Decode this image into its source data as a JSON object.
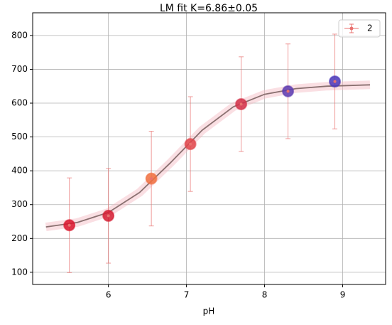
{
  "chart_data": {
    "type": "scatter",
    "title": "LM fit K=6.86±0.05",
    "x_label": "pH",
    "xlim": [
      5.03,
      9.55
    ],
    "ylim": [
      64,
      867
    ],
    "xticks": [
      6,
      7,
      8,
      9
    ],
    "yticks": [
      100,
      200,
      300,
      400,
      500,
      600,
      700,
      800
    ],
    "grid": true,
    "legend": "upper right",
    "series": [
      {
        "name": "2",
        "color": "#e8716f",
        "x": [
          5.5,
          6.0,
          6.55,
          7.05,
          7.7,
          8.3,
          8.9
        ],
        "values": [
          239,
          267,
          377,
          479,
          597,
          635,
          664
        ],
        "errors": [
          140,
          140,
          140,
          140,
          140,
          140,
          140
        ],
        "marker_colors": [
          "#d9142b",
          "#d41a30",
          "#f07040",
          "#e0454a",
          "#d23048",
          "#5a3ab0",
          "#4a36b8"
        ]
      }
    ],
    "fit": {
      "color": "#8a7070",
      "x": [
        5.2,
        5.6,
        6.0,
        6.4,
        6.8,
        7.2,
        7.6,
        8.0,
        8.4,
        8.8,
        9.35
      ],
      "values": [
        234,
        247,
        277,
        336,
        425,
        520,
        589,
        626,
        643,
        650,
        654
      ]
    }
  }
}
